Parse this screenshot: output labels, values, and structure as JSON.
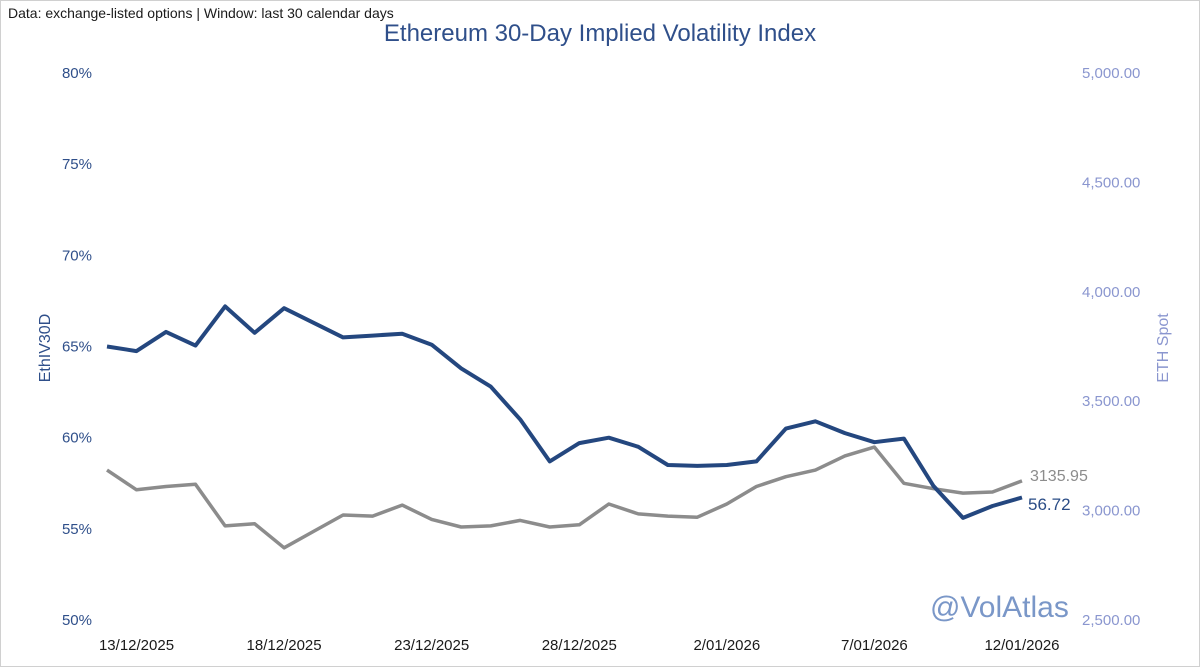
{
  "source_note": "Data: exchange-listed options | Window: last 30 calendar days",
  "watermark": "@VolAtlas",
  "colors": {
    "iv_line": "#24477f",
    "spot_line": "#8c8c8c",
    "left_axis": "#2f4f8a",
    "right_axis": "#8a96cf"
  },
  "chart_data": {
    "type": "line",
    "title": "Ethereum 30-Day Implied Volatility Index",
    "ylabel_left": "EthIV30D",
    "ylabel_right": "ETH Spot",
    "ylim_left": [
      50,
      80
    ],
    "ylim_right": [
      2500,
      5000
    ],
    "yticks_left": [
      "50%",
      "55%",
      "60%",
      "65%",
      "70%",
      "75%",
      "80%"
    ],
    "yticks_right": [
      "2,500.00",
      "3,000.00",
      "3,500.00",
      "4,000.00",
      "4,500.00",
      "5,000.00"
    ],
    "xtick_labels": [
      "13/12/2025",
      "18/12/2025",
      "23/12/2025",
      "28/12/2025",
      "2/01/2026",
      "7/01/2026",
      "12/01/2026"
    ],
    "x": [
      "13/12/2025",
      "13/12/2025",
      "14/12/2025",
      "15/12/2025",
      "16/12/2025",
      "17/12/2025",
      "18/12/2025",
      "19/12/2025",
      "20/12/2025",
      "21/12/2025",
      "22/12/2025",
      "23/12/2025",
      "24/12/2025",
      "25/12/2025",
      "26/12/2025",
      "27/12/2025",
      "28/12/2025",
      "29/12/2025",
      "30/12/2025",
      "31/12/2025",
      "1/01/2026",
      "2/01/2026",
      "3/01/2026",
      "4/01/2026",
      "5/01/2026",
      "6/01/2026",
      "7/01/2026",
      "8/01/2026",
      "9/01/2026",
      "10/01/2026",
      "11/01/2026",
      "12/01/2026"
    ],
    "grid": false,
    "series": [
      {
        "name": "EthIV30D",
        "axis": "left",
        "values": [
          65.0,
          64.75,
          65.8,
          65.05,
          67.2,
          65.75,
          67.1,
          66.3,
          65.5,
          65.6,
          65.7,
          65.1,
          63.8,
          62.8,
          61.0,
          58.7,
          59.7,
          60.0,
          59.5,
          58.5,
          58.45,
          58.5,
          58.7,
          60.5,
          60.9,
          60.25,
          59.75,
          59.95,
          57.35,
          55.6,
          56.25,
          56.72
        ],
        "end_label": "56.72"
      },
      {
        "name": "ETH Spot",
        "axis": "right",
        "values": [
          3185,
          3095,
          3110,
          3120,
          2930,
          2940,
          2830,
          2905,
          2980,
          2975,
          3025,
          2960,
          2925,
          2930,
          2955,
          2925,
          2935,
          3030,
          2985,
          2975,
          2970,
          3030,
          3110,
          3155,
          3185,
          3250,
          3290,
          3125,
          3100,
          3080,
          3085,
          3135.95
        ],
        "end_label": "3135.95"
      }
    ]
  }
}
